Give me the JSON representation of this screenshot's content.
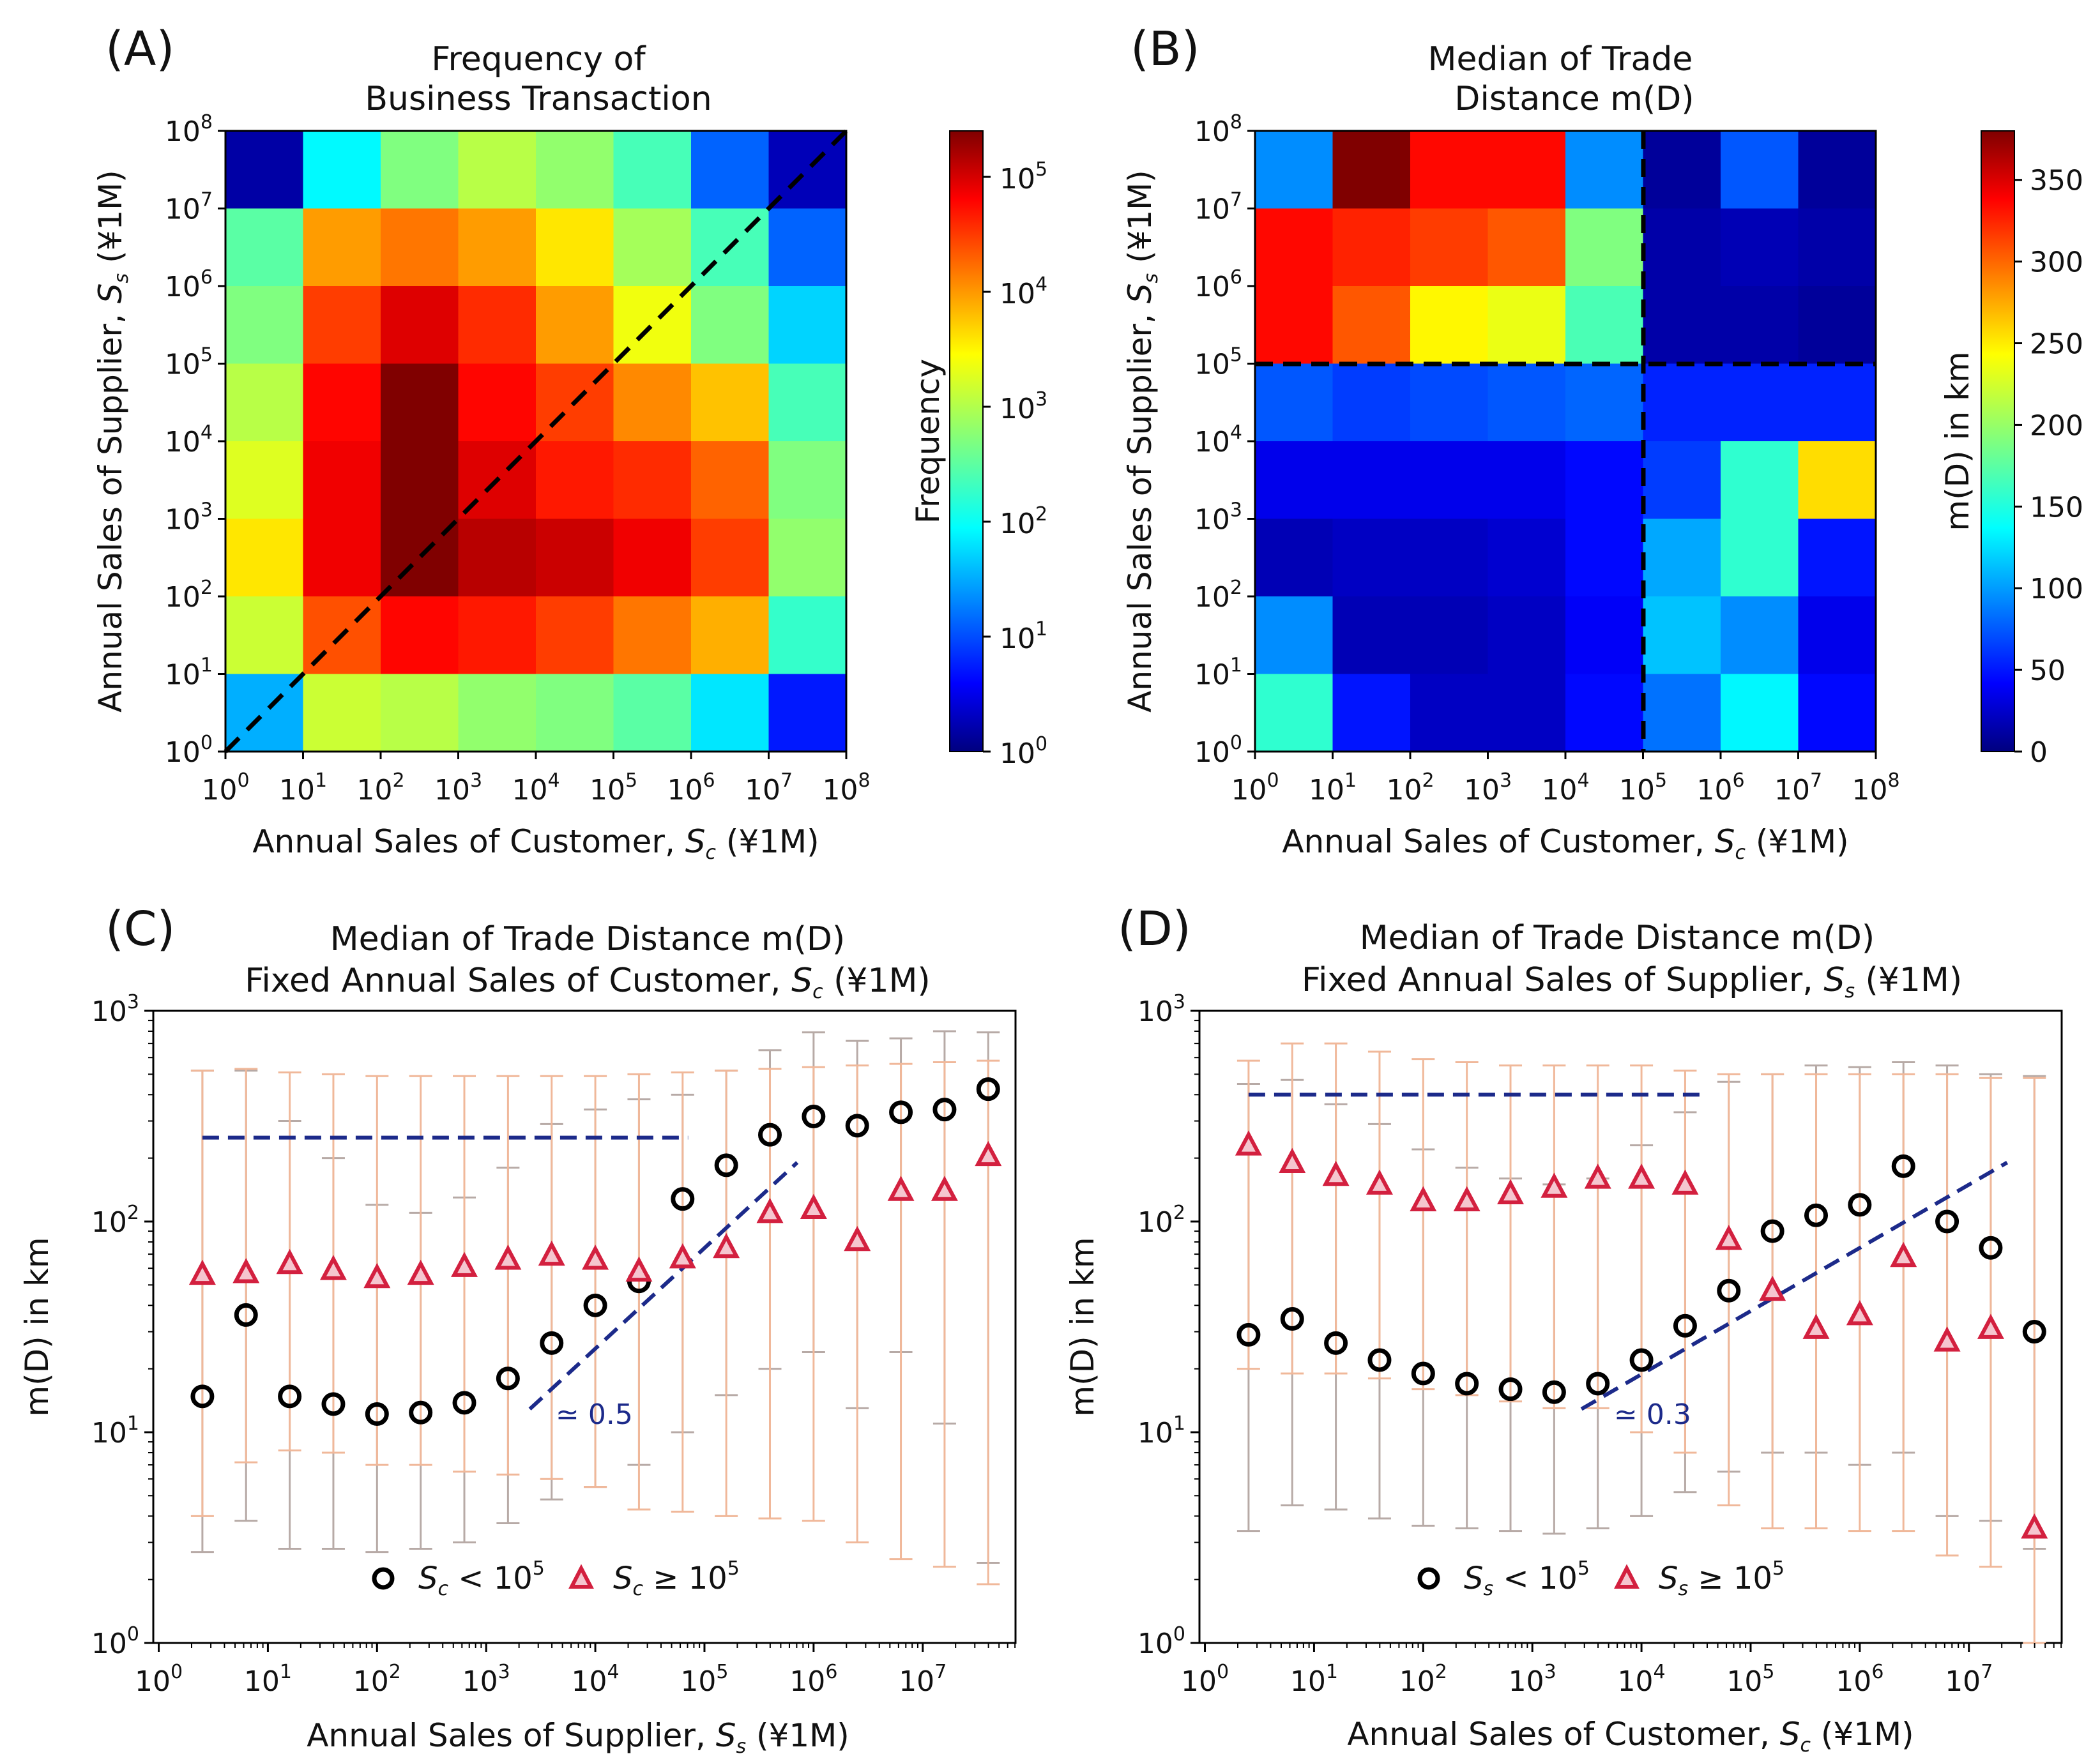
{
  "chart_data": [
    {
      "panel": "(A)",
      "type": "heatmap",
      "title": [
        "Frequency of",
        "Business Transaction"
      ],
      "xlabel": "Annual Sales of Customer, S_c (¥1M)",
      "ylabel": "Annual Sales of Supplier, S_s (¥1M)",
      "x_bins_log10": [
        0,
        1,
        2,
        3,
        4,
        5,
        6,
        7,
        8
      ],
      "y_bins_log10": [
        0,
        1,
        2,
        3,
        4,
        5,
        6,
        7,
        8
      ],
      "x_ticks": [
        "10^0",
        "10^1",
        "10^2",
        "10^3",
        "10^4",
        "10^5",
        "10^6",
        "10^7",
        "10^8"
      ],
      "y_ticks": [
        "10^0",
        "10^1",
        "10^2",
        "10^3",
        "10^4",
        "10^5",
        "10^6",
        "10^7",
        "10^8"
      ],
      "colorbar": {
        "label": "Frequency",
        "scale": "log10",
        "range_log10": [
          0,
          5.4
        ],
        "ticks": [
          "10^0",
          "10^1",
          "10^2",
          "10^3",
          "10^4",
          "10^5"
        ]
      },
      "rows_top_to_bottom_log10_frequency": [
        [
          0.2,
          2.0,
          2.7,
          3.0,
          2.8,
          2.4,
          1.2,
          0.3
        ],
        [
          2.5,
          3.9,
          4.1,
          3.9,
          3.5,
          2.9,
          2.4,
          1.2
        ],
        [
          2.7,
          4.4,
          4.9,
          4.5,
          3.9,
          3.3,
          2.7,
          1.8
        ],
        [
          3.0,
          4.7,
          5.4,
          4.7,
          4.4,
          4.0,
          3.7,
          2.4
        ],
        [
          3.2,
          4.8,
          5.4,
          4.9,
          4.6,
          4.5,
          4.2,
          2.7
        ],
        [
          3.5,
          4.8,
          5.4,
          5.1,
          5.0,
          4.8,
          4.4,
          2.8
        ],
        [
          3.1,
          4.3,
          4.7,
          4.6,
          4.4,
          4.1,
          3.8,
          2.3
        ],
        [
          1.6,
          3.1,
          3.0,
          2.8,
          2.7,
          2.5,
          1.9,
          0.8
        ]
      ],
      "annotations": "dashed diagonal S_s = S_c"
    },
    {
      "panel": "(B)",
      "type": "heatmap",
      "title": [
        "Median of Trade",
        "Distance m(D)"
      ],
      "xlabel": "Annual Sales of Customer, S_c (¥1M)",
      "ylabel": "Annual Sales of Supplier, S_s (¥1M)",
      "x_ticks": [
        "10^0",
        "10^1",
        "10^2",
        "10^3",
        "10^4",
        "10^5",
        "10^6",
        "10^7",
        "10^8"
      ],
      "y_ticks": [
        "10^0",
        "10^1",
        "10^2",
        "10^3",
        "10^4",
        "10^5",
        "10^6",
        "10^7",
        "10^8"
      ],
      "colorbar": {
        "label": "m(D) in km",
        "range": [
          0,
          380
        ],
        "ticks": [
          0,
          50,
          100,
          150,
          200,
          250,
          300,
          350
        ]
      },
      "rows_top_to_bottom_km": [
        [
          100,
          380,
          330,
          330,
          100,
          10,
          80,
          10
        ],
        [
          330,
          320,
          310,
          300,
          190,
          15,
          20,
          15
        ],
        [
          330,
          300,
          240,
          230,
          170,
          15,
          15,
          10
        ],
        [
          80,
          70,
          75,
          80,
          85,
          60,
          60,
          60
        ],
        [
          40,
          40,
          40,
          40,
          50,
          70,
          160,
          250
        ],
        [
          20,
          25,
          25,
          30,
          50,
          110,
          160,
          55
        ],
        [
          100,
          20,
          20,
          25,
          45,
          120,
          100,
          40
        ],
        [
          160,
          55,
          25,
          25,
          50,
          90,
          140,
          50
        ]
      ],
      "annotations": "dashed lines at S_c = 10^5 and S_s = 10^5"
    },
    {
      "panel": "(C)",
      "type": "scatter",
      "title": [
        "Median of Trade Distance m(D)",
        "Fixed Annual Sales of Customer, S_c (¥1M)"
      ],
      "xlabel": "Annual Sales of Supplier, S_s (¥1M)",
      "ylabel": "m(D) in km",
      "xscale": "log",
      "yscale": "log",
      "xlim_log10": [
        -0.05,
        7.85
      ],
      "ylim_log10": [
        0,
        3
      ],
      "series": [
        {
          "name": "S_c < 10^5",
          "marker": "circle",
          "color": "#000000",
          "x_log10": [
            0.4,
            0.8,
            1.2,
            1.6,
            2.0,
            2.4,
            2.8,
            3.2,
            3.6,
            4.0,
            4.4,
            4.8,
            5.2,
            5.6,
            6.0,
            6.4,
            6.8,
            7.2,
            7.6
          ],
          "y": [
            14.8,
            36.0,
            14.8,
            13.6,
            12.2,
            12.4,
            13.8,
            18.0,
            26.5,
            40.0,
            52.0,
            128.0,
            185.0,
            258.0,
            315.0,
            285.0,
            330.0,
            340.0,
            425.0
          ],
          "err_low": [
            2.7,
            3.8,
            2.8,
            2.8,
            2.7,
            2.8,
            3.0,
            3.7,
            4.8,
            5.5,
            7.0,
            10.0,
            15.0,
            20.0,
            24.0,
            13.0,
            24.0,
            11.0,
            2.4
          ],
          "err_high": [
            520,
            520,
            300,
            200,
            120,
            110,
            130,
            180,
            290,
            340,
            380,
            400,
            520,
            650,
            790,
            720,
            740,
            800,
            790
          ]
        },
        {
          "name": "S_c ≥ 10^5",
          "marker": "triangle",
          "color": "#d3203f",
          "x_log10": [
            0.4,
            0.8,
            1.2,
            1.6,
            2.0,
            2.4,
            2.8,
            3.2,
            3.6,
            4.0,
            4.4,
            4.8,
            5.2,
            5.6,
            6.0,
            6.4,
            6.8,
            7.2,
            7.6
          ],
          "y": [
            56.0,
            57.0,
            63.0,
            59.0,
            54.0,
            56.0,
            61.0,
            66.0,
            69.0,
            66.0,
            58.0,
            67.0,
            75.0,
            110.0,
            115.0,
            81.0,
            140.0,
            140.0,
            205.0
          ],
          "err_low": [
            4.0,
            7.2,
            8.2,
            8.0,
            7.0,
            7.0,
            6.5,
            6.3,
            6.0,
            5.5,
            4.3,
            4.2,
            4.0,
            3.9,
            3.8,
            3.0,
            2.5,
            2.3,
            1.9
          ],
          "err_high": [
            520,
            530,
            510,
            500,
            490,
            490,
            490,
            490,
            490,
            490,
            500,
            510,
            520,
            530,
            540,
            550,
            560,
            570,
            580
          ]
        }
      ],
      "reference_lines": [
        {
          "style": "flat dashed",
          "y": 250,
          "x_log10_range": [
            0.4,
            4.85
          ]
        },
        {
          "style": "dashed slope",
          "label": "≃ 0.5",
          "from_log10": [
            3.4,
            1.11
          ],
          "to_log10": [
            5.85,
            2.28
          ]
        }
      ],
      "legend": [
        "S_c < 10^5",
        "S_c ≥ 10^5"
      ],
      "x_ticks": [
        "10^0",
        "10^1",
        "10^2",
        "10^3",
        "10^4",
        "10^5",
        "10^6",
        "10^7"
      ],
      "y_ticks": [
        "10^0",
        "10^1",
        "10^2",
        "10^3"
      ]
    },
    {
      "panel": "(D)",
      "type": "scatter",
      "title": [
        "Median of Trade Distance m(D)",
        "Fixed Annual Sales of Supplier, S_s (¥1M)"
      ],
      "xlabel": "Annual Sales of Customer, S_c (¥1M)",
      "ylabel": "m(D) in km",
      "xscale": "log",
      "yscale": "log",
      "xlim_log10": [
        -0.05,
        7.85
      ],
      "ylim_log10": [
        0,
        3
      ],
      "series": [
        {
          "name": "S_s < 10^5",
          "marker": "circle",
          "color": "#000000",
          "x_log10": [
            0.4,
            0.8,
            1.2,
            1.6,
            2.0,
            2.4,
            2.8,
            3.2,
            3.6,
            4.0,
            4.4,
            4.8,
            5.2,
            5.6,
            6.0,
            6.4,
            6.8,
            7.2,
            7.6
          ],
          "y": [
            29.0,
            34.5,
            26.5,
            22.0,
            19.0,
            17.0,
            16.0,
            15.5,
            17.0,
            22.0,
            32.0,
            47.0,
            90.0,
            107.0,
            120.0,
            183.0,
            100.0,
            75.0,
            30.0
          ],
          "err_low": [
            3.4,
            4.5,
            4.3,
            3.9,
            3.6,
            3.5,
            3.4,
            3.3,
            3.5,
            4.0,
            5.2,
            6.5,
            8.0,
            8.0,
            7.0,
            8.0,
            4.0,
            3.8,
            2.8
          ],
          "err_high": [
            450,
            470,
            360,
            290,
            220,
            180,
            160,
            150,
            160,
            230,
            330,
            460,
            500,
            550,
            540,
            570,
            550,
            500,
            490
          ]
        },
        {
          "name": "S_s ≥ 10^5",
          "marker": "triangle",
          "color": "#d3203f",
          "x_log10": [
            0.4,
            0.8,
            1.2,
            1.6,
            2.0,
            2.4,
            2.8,
            3.2,
            3.6,
            4.0,
            4.4,
            4.8,
            5.2,
            5.6,
            6.0,
            6.4,
            6.8,
            7.2,
            7.6
          ],
          "y": [
            230.0,
            190.0,
            165.0,
            150.0,
            125.0,
            125.0,
            135.0,
            145.0,
            160.0,
            160.0,
            150.0,
            82.0,
            47.0,
            31.0,
            36.0,
            68.0,
            27.0,
            31.0,
            3.5
          ],
          "err_low": [
            20.0,
            19.0,
            19.0,
            18.0,
            16.0,
            15.0,
            14.0,
            13.0,
            13.0,
            10.0,
            8.0,
            4.5,
            3.5,
            3.5,
            3.4,
            3.4,
            2.6,
            2.3,
            1.0
          ],
          "err_high": [
            580,
            700,
            700,
            640,
            590,
            570,
            550,
            550,
            550,
            550,
            520,
            500,
            500,
            500,
            500,
            500,
            500,
            480,
            480
          ]
        }
      ],
      "reference_lines": [
        {
          "style": "flat dashed",
          "y": 400,
          "x_log10_range": [
            0.4,
            4.6
          ]
        },
        {
          "style": "dashed slope",
          "label": "≃ 0.3",
          "from_log10": [
            3.45,
            1.11
          ],
          "to_log10": [
            7.35,
            2.28
          ]
        }
      ],
      "legend": [
        "S_s < 10^5",
        "S_s ≥ 10^5"
      ],
      "x_ticks": [
        "10^0",
        "10^1",
        "10^2",
        "10^3",
        "10^4",
        "10^5",
        "10^6",
        "10^7"
      ],
      "y_ticks": [
        "10^0",
        "10^1",
        "10^2",
        "10^3"
      ]
    }
  ],
  "panels": {
    "a": {
      "letter": "(A)",
      "title1": "Frequency of",
      "title2": "Business Transaction",
      "cbar_label": "Frequency"
    },
    "b": {
      "letter": "(B)",
      "title1": "Median of Trade",
      "title2": "Distance m(D)",
      "cbar_label": "m(D) in km"
    },
    "c": {
      "letter": "(C)",
      "title1": "Median of Trade Distance m(D)",
      "slope_label": "≃ 0.5"
    },
    "d": {
      "letter": "(D)",
      "title1": "Median of Trade Distance m(D)",
      "slope_label": "≃ 0.3"
    }
  },
  "text": {
    "ylabel_supplier_prefix": "Annual Sales of Supplier, ",
    "xlabel_customer_prefix": "Annual Sales of Customer, ",
    "xlabel_supplier_prefix": "Annual Sales of Supplier, ",
    "unit_suffix": " (¥1M)",
    "fixed_customer_prefix": "Fixed Annual Sales of Customer, ",
    "fixed_supplier_prefix": "Fixed Annual Sales of Supplier, ",
    "mD_axis": "m(D) in km",
    "S": "S",
    "sub_c": "c",
    "sub_s": "s",
    "ten": "10",
    "lt": " < 10",
    "ge": " ≥ 10",
    "five": "5",
    "cb_b_ticks": [
      "0",
      "50",
      "100",
      "150",
      "200",
      "250",
      "300",
      "350"
    ]
  },
  "colors": {
    "circle": "#000000",
    "triangle": "#d3203f",
    "ref_line": "#1c2a8a",
    "err_gray": "#b7aaa6",
    "err_orange": "#f0b89a"
  }
}
